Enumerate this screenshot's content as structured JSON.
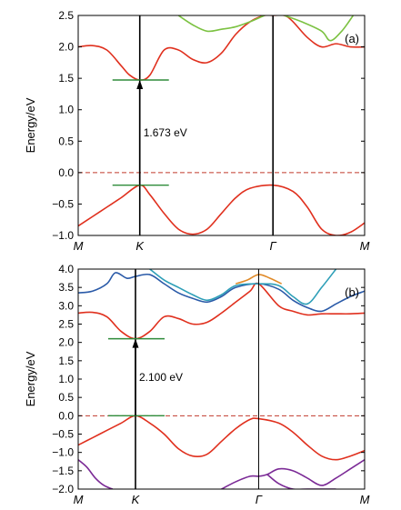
{
  "chart_data": [
    {
      "panel_label": "(a)",
      "type": "line",
      "ylabel": "Energy/eV",
      "ylim": [
        -1.0,
        2.5
      ],
      "yticks": [
        -1.0,
        -0.5,
        0.0,
        0.5,
        1.0,
        1.5,
        2.0,
        2.5
      ],
      "xlim": [
        0,
        1
      ],
      "xticks": [
        {
          "label": "M",
          "x": 0.0
        },
        {
          "label": "K",
          "x": 0.215
        },
        {
          "label": "Γ",
          "x": 0.68
        },
        {
          "label": "M",
          "x": 1.0
        }
      ],
      "fermi_level": 0.0,
      "gap": {
        "value_label": "1.673 eV",
        "x": 0.215,
        "from": -0.2,
        "to": 1.473
      },
      "series": [
        {
          "color": "#e0301e",
          "x": [
            0,
            0.05,
            0.1,
            0.15,
            0.18,
            0.215,
            0.25,
            0.3,
            0.35,
            0.4,
            0.45,
            0.5,
            0.55,
            0.6,
            0.65,
            0.68
          ],
          "y": [
            2.0,
            2.02,
            1.95,
            1.7,
            1.55,
            1.473,
            1.55,
            1.95,
            1.95,
            1.8,
            1.75,
            1.9,
            2.2,
            2.4,
            2.5,
            2.5
          ]
        },
        {
          "color": "#e0301e",
          "x": [
            0.68,
            0.72,
            0.75,
            0.8,
            0.85,
            0.9,
            0.95,
            1.0
          ],
          "y": [
            2.5,
            2.5,
            2.4,
            2.15,
            2.0,
            2.05,
            2.0,
            2.0
          ]
        },
        {
          "color": "#e0301e",
          "x": [
            0,
            0.05,
            0.1,
            0.15,
            0.215,
            0.25,
            0.3,
            0.35,
            0.4,
            0.45,
            0.5,
            0.55,
            0.6,
            0.68,
            0.75,
            0.8,
            0.85,
            0.9,
            0.95,
            1.0
          ],
          "y": [
            -0.85,
            -0.7,
            -0.55,
            -0.4,
            -0.2,
            -0.35,
            -0.65,
            -0.9,
            -0.98,
            -0.9,
            -0.65,
            -0.4,
            -0.25,
            -0.2,
            -0.3,
            -0.55,
            -0.9,
            -1.0,
            -0.95,
            -0.8
          ]
        },
        {
          "color": "#7cc242",
          "x": [
            0.35,
            0.4,
            0.45,
            0.5,
            0.55,
            0.6,
            0.65
          ],
          "y": [
            2.5,
            2.35,
            2.25,
            2.28,
            2.32,
            2.4,
            2.5
          ]
        },
        {
          "color": "#7cc242",
          "x": [
            0.72,
            0.78,
            0.85,
            0.88,
            0.92,
            0.96
          ],
          "y": [
            2.5,
            2.4,
            2.25,
            2.1,
            2.25,
            2.5
          ]
        }
      ]
    },
    {
      "panel_label": "(b)",
      "type": "line",
      "ylabel": "Energy/eV",
      "ylim": [
        -2.0,
        4.0
      ],
      "yticks": [
        -2.0,
        -1.5,
        -1.0,
        -0.5,
        0.0,
        0.5,
        1.0,
        1.5,
        2.0,
        2.5,
        3.0,
        3.5,
        4.0
      ],
      "xlim": [
        0,
        1
      ],
      "xticks": [
        {
          "label": "M",
          "x": 0.0
        },
        {
          "label": "K",
          "x": 0.2
        },
        {
          "label": "Γ",
          "x": 0.63
        },
        {
          "label": "M",
          "x": 1.0
        }
      ],
      "fermi_level": 0.0,
      "gap": {
        "value_label": "2.100 eV",
        "x": 0.2,
        "from": 0.0,
        "to": 2.1
      },
      "series": [
        {
          "color": "#e0301e",
          "x": [
            0,
            0.05,
            0.1,
            0.15,
            0.2,
            0.25,
            0.3,
            0.35,
            0.4,
            0.45,
            0.5,
            0.55,
            0.6,
            0.63,
            0.7,
            0.75,
            0.8,
            0.85,
            0.9,
            0.95,
            1.0
          ],
          "y": [
            2.8,
            2.82,
            2.7,
            2.3,
            2.1,
            2.3,
            2.7,
            2.65,
            2.5,
            2.55,
            2.8,
            3.1,
            3.4,
            3.6,
            3.0,
            2.85,
            2.75,
            2.78,
            2.78,
            2.78,
            2.8
          ]
        },
        {
          "color": "#e0301e",
          "x": [
            0,
            0.05,
            0.1,
            0.15,
            0.2,
            0.25,
            0.3,
            0.35,
            0.4,
            0.45,
            0.5,
            0.55,
            0.6,
            0.63,
            0.7,
            0.75,
            0.8,
            0.85,
            0.9,
            0.95,
            1.0
          ],
          "y": [
            -0.8,
            -0.6,
            -0.4,
            -0.2,
            0.0,
            -0.2,
            -0.5,
            -0.9,
            -1.1,
            -1.05,
            -0.7,
            -0.35,
            -0.1,
            -0.08,
            -0.2,
            -0.45,
            -0.8,
            -1.1,
            -1.2,
            -1.1,
            -0.95
          ]
        },
        {
          "color": "#2a5aa8",
          "x": [
            0,
            0.05,
            0.1,
            0.13,
            0.17,
            0.2,
            0.25,
            0.3,
            0.35,
            0.4,
            0.45,
            0.5,
            0.55,
            0.63,
            0.7,
            0.75,
            0.8,
            0.85,
            0.9,
            0.95,
            1.0
          ],
          "y": [
            3.35,
            3.4,
            3.6,
            3.9,
            3.75,
            3.8,
            3.85,
            3.6,
            3.35,
            3.2,
            3.1,
            3.25,
            3.5,
            3.6,
            3.45,
            3.15,
            2.95,
            2.85,
            3.05,
            3.25,
            3.4
          ]
        },
        {
          "color": "#2e9fb8",
          "x": [
            0.25,
            0.3,
            0.35,
            0.4,
            0.45,
            0.5,
            0.55,
            0.63,
            0.7,
            0.75,
            0.8,
            0.85,
            0.9
          ],
          "y": [
            4.0,
            3.7,
            3.5,
            3.3,
            3.15,
            3.3,
            3.55,
            3.6,
            3.55,
            3.25,
            3.05,
            3.5,
            4.0
          ]
        },
        {
          "color": "#e08a28",
          "x": [
            0.55,
            0.59,
            0.63,
            0.67,
            0.71
          ],
          "y": [
            3.6,
            3.7,
            3.85,
            3.75,
            3.6
          ]
        },
        {
          "color": "#7b2a96",
          "x": [
            0,
            0.03,
            0.06,
            0.09,
            0.12
          ],
          "y": [
            -1.2,
            -1.4,
            -1.7,
            -1.9,
            -2.0
          ]
        },
        {
          "color": "#7b2a96",
          "x": [
            0.5,
            0.55,
            0.6,
            0.63,
            0.66,
            0.7,
            0.75,
            0.8,
            0.85,
            0.9,
            0.95,
            1.0
          ],
          "y": [
            -2.0,
            -1.8,
            -1.65,
            -1.65,
            -1.6,
            -1.45,
            -1.5,
            -1.7,
            -1.9,
            -1.7,
            -1.45,
            -1.2
          ]
        },
        {
          "color": "#7b2a96",
          "x": [
            0.66,
            0.7,
            0.75,
            0.8,
            0.85,
            0.9
          ],
          "y": [
            -1.6,
            -1.85,
            -2.0,
            -2.0,
            -2.0,
            -2.0
          ]
        }
      ]
    }
  ]
}
